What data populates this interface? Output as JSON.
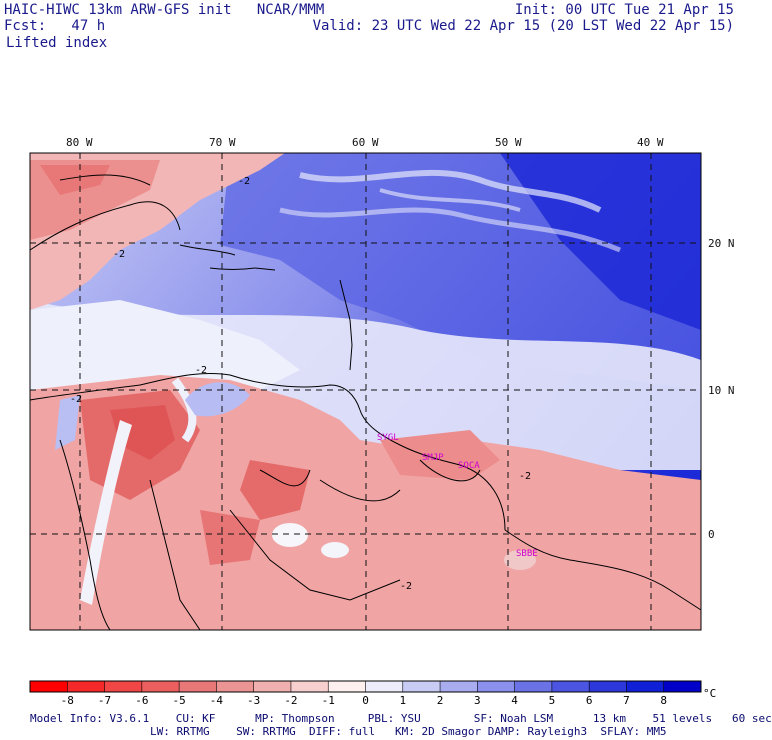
{
  "header": {
    "title": "HAIC-HIWC 13km ARW-GFS init   NCAR/MMM",
    "fcst": "Fcst:   47 h",
    "field": "Lifted index",
    "init": "Init: 00 UTC Tue 21 Apr 15",
    "valid": "Valid: 23 UTC Wed 22 Apr 15 (20 LST Wed 22 Apr 15)"
  },
  "map": {
    "lon_labels": [
      "80 W",
      "70 W",
      "60 W",
      "50 W",
      "40 W"
    ],
    "lat_labels": [
      "20 N",
      "10 N",
      "0"
    ],
    "contour_labels": [
      "-2",
      "-2",
      "-2",
      "-2",
      "-2",
      "-2"
    ],
    "stations": [
      "SYGL",
      "SMJP",
      "SOCA",
      "SBBE"
    ]
  },
  "colorbar": {
    "ticks": [
      "-8",
      "-7",
      "-6",
      "-5",
      "-4",
      "-3",
      "-2",
      "-1",
      "0",
      "1",
      "2",
      "3",
      "4",
      "5",
      "6",
      "7",
      "8"
    ],
    "unit": "°C",
    "colors": [
      "#ff0000",
      "#f5282a",
      "#f04646",
      "#eb5f5f",
      "#e87777",
      "#eb9494",
      "#f0b0b0",
      "#f7cfcf",
      "#fff0f0",
      "#ececfb",
      "#c8ccf5",
      "#a9adf0",
      "#8a90ec",
      "#6b72e6",
      "#4c55e1",
      "#2c38da",
      "#1020d6",
      "#0000c8"
    ]
  },
  "model_info": {
    "line1": "Model Info: V3.6.1    CU: KF      MP: Thompson     PBL: YSU        SF: Noah LSM      13 km    51 levels   60 sec",
    "line2": "LW: RRTMG    SW: RRTMG  DIFF: full   KM: 2D Smagor DAMP: Rayleigh3  SFLAY: MM5"
  }
}
